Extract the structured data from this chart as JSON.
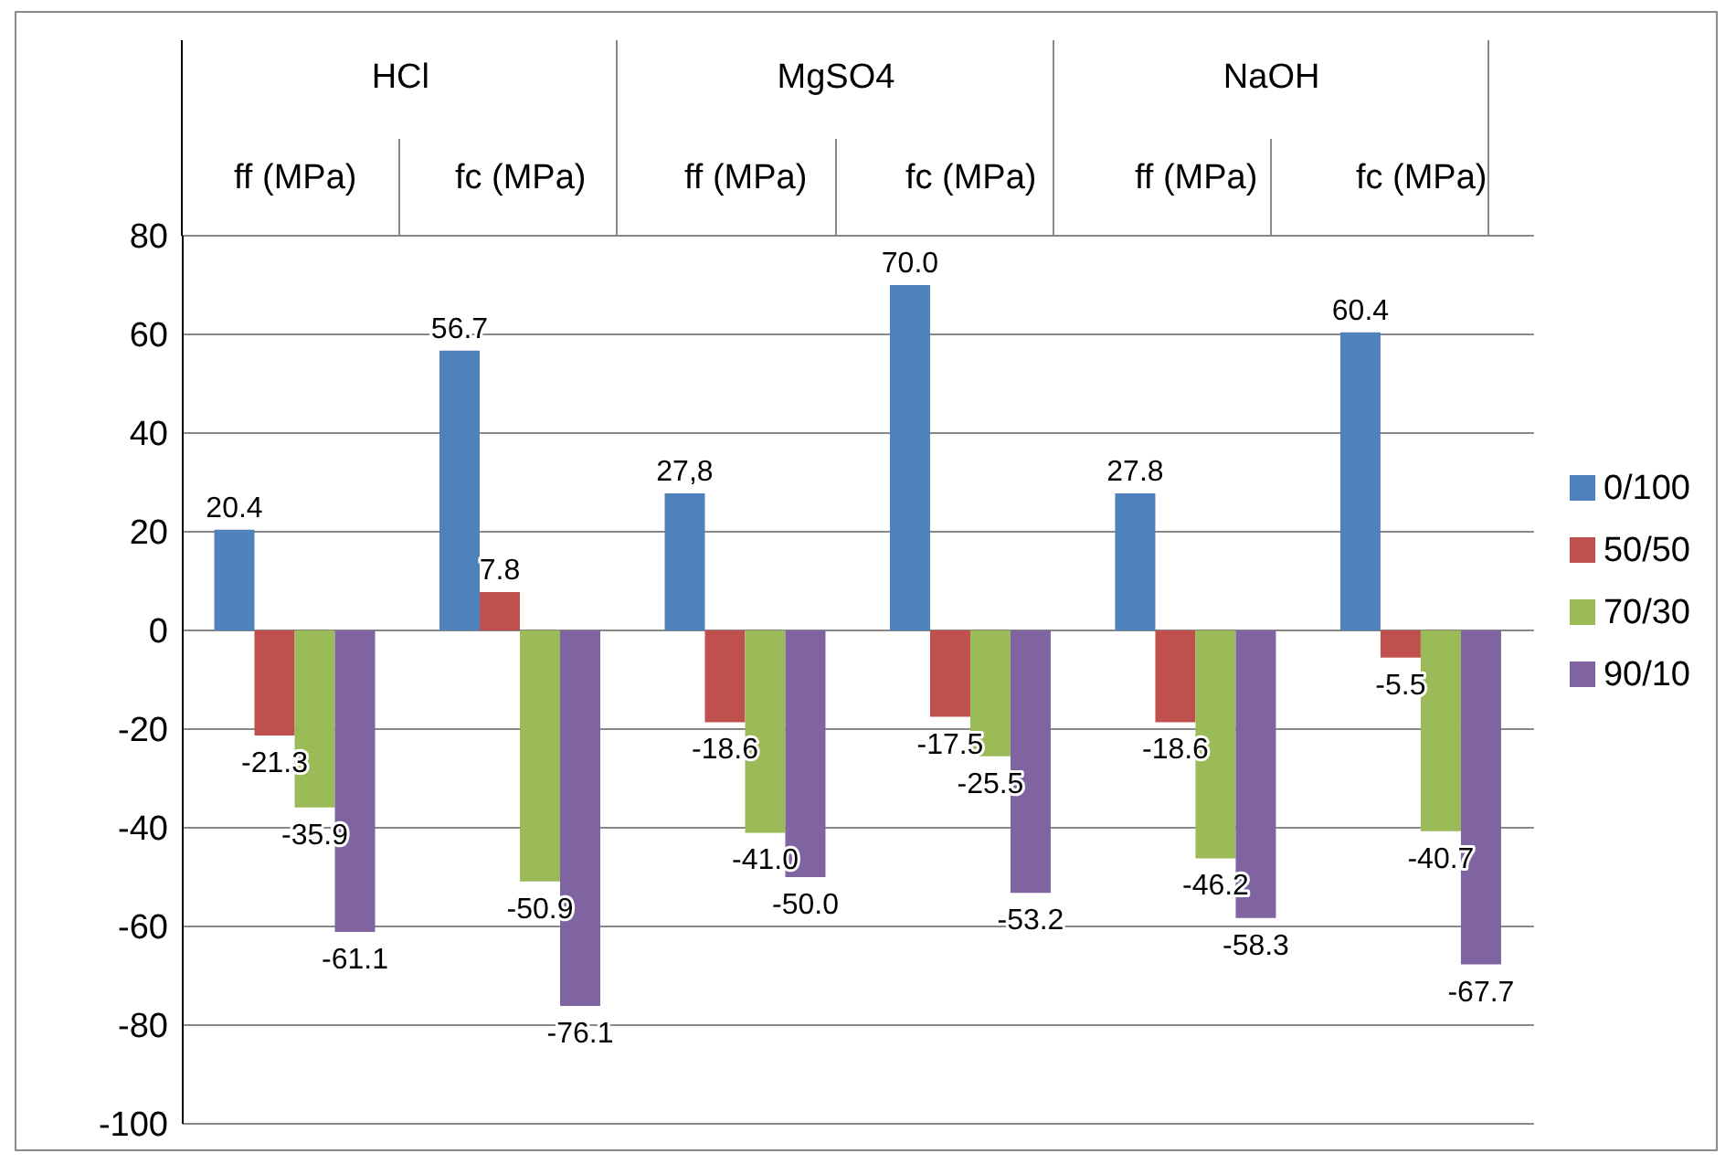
{
  "chart_data": {
    "type": "bar",
    "categories": [
      "ff (MPa)",
      "fc (MPa)",
      "ff (MPa)",
      "fc (MPa)",
      "ff (MPa)",
      "fc (MPa)"
    ],
    "annotations": [
      "HCl",
      "MgSO4",
      "NaOH"
    ],
    "series": [
      {
        "name": "0/100",
        "color": "#4f81bd",
        "values": [
          20.4,
          56.7,
          27.8,
          70.0,
          27.8,
          60.4
        ],
        "value_labels": [
          "20.4",
          "56.7",
          "27,8",
          "70.0",
          "27.8",
          "60.4"
        ]
      },
      {
        "name": "50/50",
        "color": "#c0504d",
        "values": [
          -21.3,
          7.8,
          -18.6,
          -17.5,
          -18.6,
          -5.5
        ],
        "value_labels": [
          "-21.3",
          "7.8",
          "-18.6",
          "-17.5",
          "-18.6",
          "-5.5"
        ]
      },
      {
        "name": "70/30",
        "color": "#9bbb59",
        "values": [
          -35.9,
          -50.9,
          -41.0,
          -25.5,
          -46.2,
          -40.7
        ],
        "value_labels": [
          "-35.9",
          "-50.9",
          "-41.0",
          "-25.5",
          "-46.2",
          "-40.7"
        ]
      },
      {
        "name": "90/10",
        "color": "#8064a2",
        "values": [
          -61.1,
          -76.1,
          -50.0,
          -53.2,
          -58.3,
          -67.7
        ],
        "value_labels": [
          "-61.1",
          "-76.1",
          "-50.0",
          "-53.2",
          "-58.3",
          "-67.7"
        ]
      }
    ],
    "ylim": [
      -100,
      80
    ],
    "yticks": [
      -100,
      -80,
      -60,
      -40,
      -20,
      0,
      20,
      40,
      60,
      80
    ],
    "grid": "y",
    "legend": "right"
  }
}
